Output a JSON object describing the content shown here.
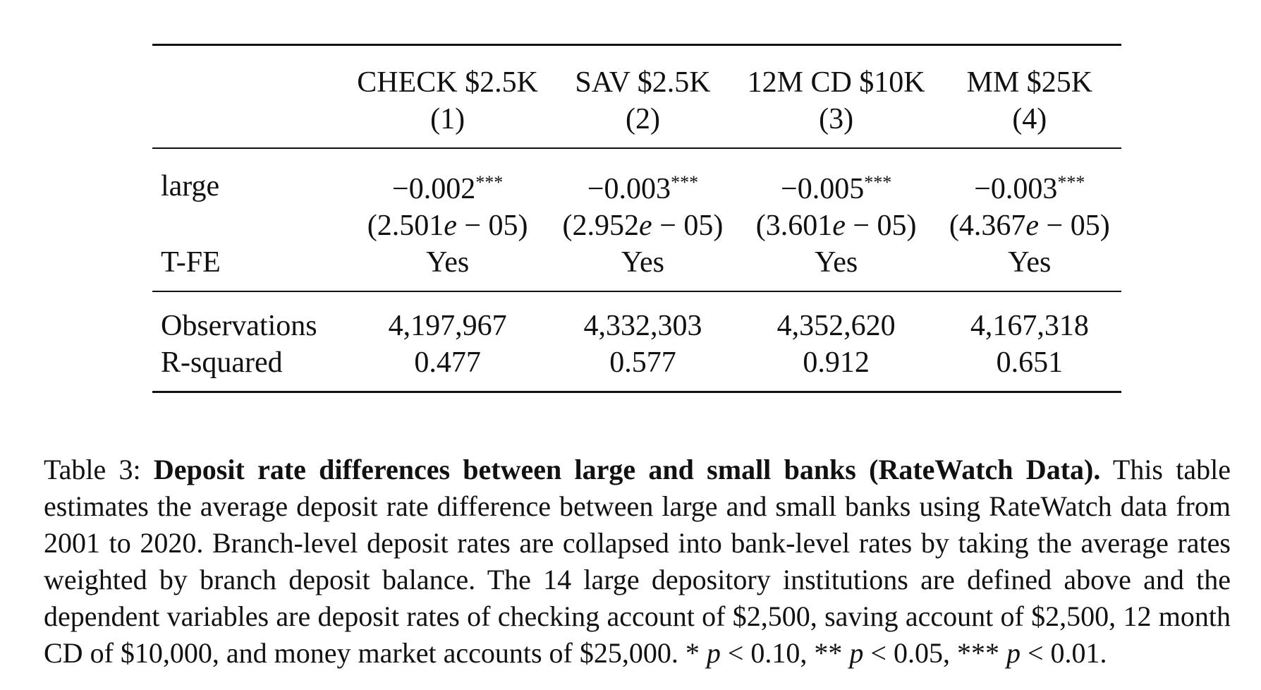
{
  "table": {
    "columns": [
      {
        "name": "CHECK $2.5K",
        "number": "(1)"
      },
      {
        "name": "SAV $2.5K",
        "number": "(2)"
      },
      {
        "name": "12M CD $10K",
        "number": "(3)"
      },
      {
        "name": "MM $25K",
        "number": "(4)"
      }
    ],
    "rows": {
      "large": {
        "label": "large",
        "coefficients": [
          "−0.002",
          "−0.003",
          "−0.005",
          "−0.003"
        ],
        "stars": [
          "***",
          "***",
          "***",
          "***"
        ],
        "se_mantissa": [
          "(2.501",
          "(2.952",
          "(3.601",
          "(4.367"
        ],
        "se_e": [
          "e",
          "e",
          "e",
          "e"
        ],
        "se_exp": [
          " − 05)",
          " − 05)",
          " − 05)",
          " − 05)"
        ]
      },
      "tfe": {
        "label": "T-FE",
        "values": [
          "Yes",
          "Yes",
          "Yes",
          "Yes"
        ]
      },
      "observations": {
        "label": "Observations",
        "values": [
          "4,197,967",
          "4,332,303",
          "4,352,620",
          "4,167,318"
        ]
      },
      "rsquared": {
        "label": "R-squared",
        "values": [
          "0.477",
          "0.577",
          "0.912",
          "0.651"
        ]
      }
    }
  },
  "caption": {
    "prefix": "Table 3: ",
    "title": "Deposit rate differences between large and small banks (RateWatch Data).",
    "body": " This table estimates the average deposit rate difference between large and small banks using RateWatch data from 2001 to 2020. Branch-level deposit rates are collapsed into bank-level rates by taking the average rates weighted by branch deposit balance. The 14 large depository institutions are defined above and the dependent variables are deposit rates of checking account of $2,500, saving account of $2,500, 12 month CD of $10,000, and money market accounts of $25,000. ",
    "sig1_stars": "* ",
    "sig1_p": "p",
    "sig1_rest": " < 0.10, ",
    "sig2_stars": "** ",
    "sig2_p": "p",
    "sig2_rest": " < 0.05, ",
    "sig3_stars": "*** ",
    "sig3_p": "p",
    "sig3_rest": " < 0.01."
  }
}
